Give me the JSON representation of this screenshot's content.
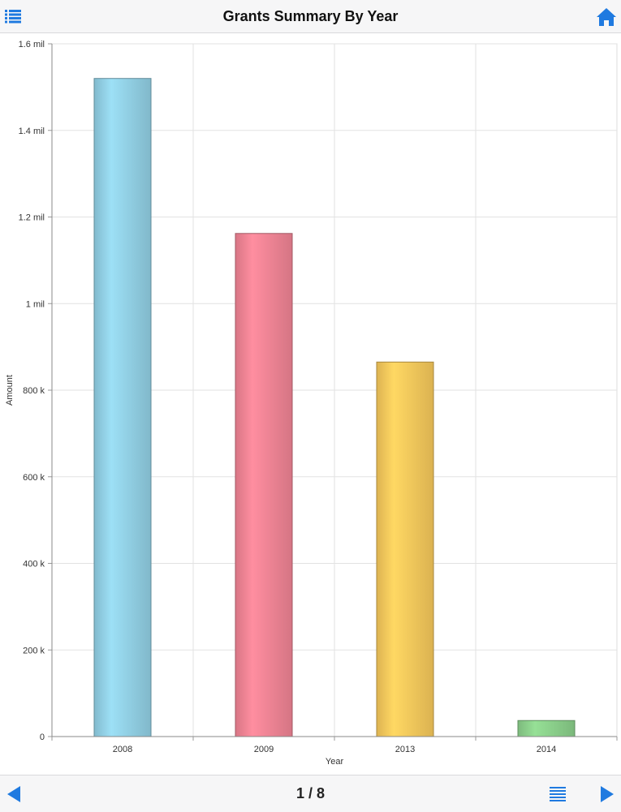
{
  "header": {
    "title": "Grants Summary By Year",
    "menu_icon": "list-icon",
    "home_icon": "home-icon"
  },
  "footer": {
    "page_indicator": "1 / 8",
    "prev_icon": "triangle-left-icon",
    "next_icon": "triangle-right-icon",
    "details_icon": "lines-icon"
  },
  "colors": {
    "accent": "#1f7ae0",
    "bars": [
      "#8cc8dc",
      "#e87f8f",
      "#eec158",
      "#86c886"
    ]
  },
  "chart_data": {
    "type": "bar",
    "categories": [
      "2008",
      "2009",
      "2013",
      "2014"
    ],
    "values": [
      1520000,
      1162000,
      865000,
      37000
    ],
    "xlabel": "Year",
    "ylabel": "Amount",
    "ylim": [
      0,
      1600000
    ],
    "yticks": [
      0,
      200000,
      400000,
      600000,
      800000,
      1000000,
      1200000,
      1400000,
      1600000
    ],
    "ytick_labels": [
      "0",
      "200 k",
      "400 k",
      "600 k",
      "800 k",
      "1 mil",
      "1.2 mil",
      "1.4 mil",
      "1.6 mil"
    ],
    "grid": true,
    "legend": "none"
  }
}
